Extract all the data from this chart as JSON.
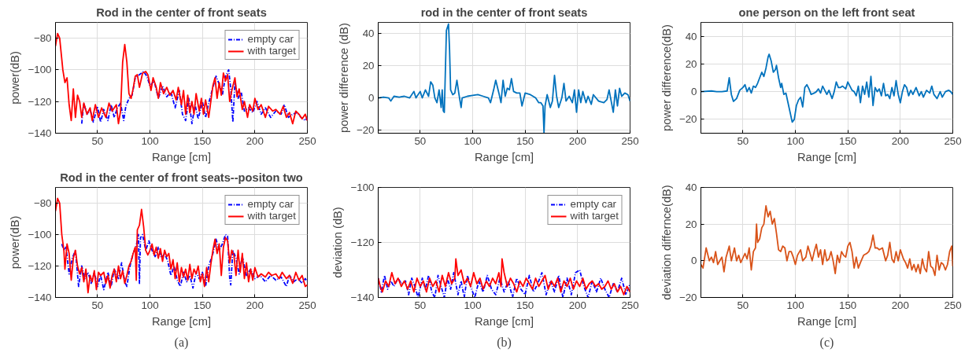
{
  "chart_data": [
    {
      "type": "line",
      "title": "Rod in the center of front seats",
      "xlabel": "Range [cm]",
      "ylabel": "power(dB)",
      "xlim": [
        10,
        250
      ],
      "xticks": [
        50,
        100,
        150,
        200,
        250
      ],
      "ylim": [
        -140,
        -70
      ],
      "yticks": [
        -140,
        -120,
        -100,
        -80
      ],
      "grid": true,
      "legend": "top right",
      "series": [
        {
          "name": "empty car",
          "color": "#0000ff",
          "line_style": "dashdot",
          "x": [
            35,
            37,
            40,
            43,
            46,
            50,
            53,
            56,
            60,
            63,
            66,
            69,
            72,
            75,
            77,
            80,
            83,
            86,
            90,
            94,
            97,
            100,
            104,
            108,
            112,
            116,
            120,
            124,
            128,
            131,
            134,
            137,
            140,
            143,
            146,
            150,
            153,
            156,
            160,
            163,
            166,
            169,
            172,
            175,
            177,
            179,
            181,
            184,
            187,
            190,
            194,
            198,
            202,
            206,
            210,
            215,
            220,
            225,
            228,
            232,
            236,
            240,
            244,
            248,
            250
          ],
          "values": [
            -134,
            -121,
            -128,
            -125,
            -133,
            -123,
            -133,
            -125,
            -132,
            -122,
            -130,
            -124,
            -121,
            -132,
            -123,
            -118,
            -116,
            -105,
            -103,
            -101,
            -104,
            -110,
            -107,
            -118,
            -110,
            -117,
            -114,
            -124,
            -113,
            -128,
            -132,
            -118,
            -134,
            -122,
            -131,
            -120,
            -130,
            -121,
            -111,
            -104,
            -109,
            -116,
            -104,
            -100,
            -112,
            -133,
            -108,
            -118,
            -114,
            -126,
            -124,
            -127,
            -120,
            -128,
            -124,
            -130,
            -126,
            -128,
            -122,
            -130,
            -128,
            -127,
            -130,
            -132,
            -130
          ]
        },
        {
          "name": "with target",
          "color": "#ff0000",
          "line_style": "solid",
          "x": [
            10,
            12,
            14,
            17,
            19,
            21,
            23,
            25,
            27,
            29,
            31,
            33,
            35,
            37,
            40,
            43,
            45,
            48,
            51,
            54,
            58,
            61,
            64,
            68,
            70,
            72,
            74,
            76,
            78,
            80,
            82,
            84,
            86,
            88,
            90,
            93,
            96,
            98,
            101,
            103,
            106,
            108,
            110,
            113,
            116,
            119,
            122,
            125,
            127,
            130,
            132,
            134,
            136,
            138,
            140,
            142,
            144,
            147,
            149,
            151,
            153,
            156,
            158,
            160,
            162,
            164,
            166,
            168,
            170,
            172,
            174,
            176,
            178,
            181,
            183,
            185,
            188,
            190,
            193,
            195,
            198,
            200,
            203,
            206,
            210,
            213,
            217,
            220,
            224,
            227,
            230,
            233,
            236,
            239,
            242,
            245,
            248,
            250
          ],
          "values": [
            -85,
            -77,
            -80,
            -100,
            -108,
            -105,
            -122,
            -132,
            -112,
            -130,
            -116,
            -120,
            -130,
            -121,
            -128,
            -124,
            -132,
            -122,
            -130,
            -124,
            -130,
            -121,
            -126,
            -122,
            -134,
            -126,
            -95,
            -84,
            -95,
            -115,
            -118,
            -112,
            -104,
            -103,
            -111,
            -102,
            -101,
            -103,
            -113,
            -105,
            -111,
            -118,
            -108,
            -115,
            -111,
            -116,
            -113,
            -119,
            -111,
            -122,
            -113,
            -128,
            -116,
            -127,
            -120,
            -128,
            -115,
            -126,
            -118,
            -128,
            -119,
            -130,
            -120,
            -110,
            -105,
            -118,
            -108,
            -116,
            -102,
            -107,
            -103,
            -120,
            -113,
            -105,
            -117,
            -112,
            -125,
            -120,
            -130,
            -122,
            -126,
            -118,
            -125,
            -122,
            -130,
            -123,
            -126,
            -125,
            -128,
            -123,
            -130,
            -127,
            -134,
            -126,
            -128,
            -131,
            -128,
            -132
          ]
        }
      ]
    },
    {
      "type": "line",
      "title": "rod in the center of front seats",
      "xlabel": "Range [cm]",
      "ylabel": "power difference (dB)",
      "xlim": [
        10,
        250
      ],
      "xticks": [
        50,
        100,
        150,
        200,
        250
      ],
      "ylim": [
        -22,
        47
      ],
      "yticks": [
        -20,
        0,
        20,
        40
      ],
      "grid": true,
      "series": [
        {
          "color": "#0072bd",
          "line_style": "solid",
          "x": [
            10,
            15,
            20,
            22,
            25,
            30,
            35,
            40,
            44,
            46,
            50,
            52,
            55,
            58,
            60,
            62,
            64,
            66,
            68,
            70,
            71,
            72,
            73,
            75,
            77,
            78,
            79,
            81,
            83,
            85,
            87,
            89,
            90,
            95,
            100,
            105,
            110,
            115,
            117,
            120,
            122,
            125,
            127,
            129,
            131,
            133,
            135,
            137,
            139,
            142,
            145,
            147,
            150,
            155,
            160,
            163,
            165,
            167,
            168,
            169,
            171,
            174,
            176,
            178,
            180,
            182,
            185,
            187,
            189,
            192,
            195,
            197,
            199,
            201,
            203,
            205,
            208,
            210,
            213,
            215,
            220,
            225,
            228,
            230,
            232,
            234,
            236,
            238,
            240,
            242,
            245,
            248,
            250
          ],
          "values": [
            0,
            0.5,
            0,
            -2,
            1,
            0.5,
            1,
            0,
            4,
            0,
            4,
            0,
            5,
            1,
            10,
            8,
            0,
            -3,
            5,
            -6,
            5,
            -8,
            -9,
            42,
            46,
            30,
            5,
            2,
            3,
            11,
            2,
            -6,
            0,
            1,
            1.5,
            2,
            1,
            0,
            -3,
            5,
            11,
            3,
            -3,
            11,
            1,
            6,
            5,
            12,
            4,
            3,
            3,
            -5,
            3,
            2,
            0,
            -3,
            -3,
            -5,
            -22,
            -5,
            2,
            -6,
            -2,
            14,
            1,
            -6,
            0,
            9,
            -2,
            1,
            -3,
            5,
            -9,
            5,
            -3,
            4,
            -3,
            1,
            -4,
            2,
            -2,
            -3,
            -1,
            5,
            -2,
            -9,
            5,
            -5,
            6,
            1,
            3,
            2,
            -2
          ]
        }
      ]
    },
    {
      "type": "line",
      "title": "one person on the left front seat",
      "xlabel": "Range [cm]",
      "ylabel": "power difference(dB)",
      "xlim": [
        10,
        250
      ],
      "xticks": [
        50,
        100,
        150,
        200,
        250
      ],
      "ylim": [
        -30,
        50
      ],
      "yticks": [
        -20,
        0,
        20,
        40
      ],
      "grid": true,
      "series": [
        {
          "color": "#0072bd",
          "line_style": "solid",
          "x": [
            10,
            20,
            25,
            30,
            35,
            37,
            39,
            41,
            44,
            47,
            50,
            52,
            54,
            56,
            58,
            60,
            62,
            64,
            66,
            68,
            70,
            72,
            74,
            75,
            77,
            79,
            81,
            82,
            84,
            86,
            87,
            89,
            91,
            93,
            95,
            97,
            99,
            101,
            103,
            105,
            107,
            109,
            111,
            113,
            115,
            118,
            120,
            122,
            124,
            126,
            128,
            130,
            132,
            135,
            137,
            139,
            141,
            143,
            145,
            148,
            150,
            152,
            154,
            156,
            158,
            160,
            162,
            164,
            166,
            168,
            170,
            172,
            174,
            176,
            178,
            180,
            182,
            184,
            186,
            188,
            190,
            192,
            194,
            196,
            198,
            200,
            202,
            204,
            206,
            208,
            210,
            212,
            215,
            218,
            220,
            222,
            225,
            228,
            230,
            232,
            235,
            238,
            240,
            243,
            246,
            248,
            250
          ],
          "values": [
            0,
            0.5,
            0,
            0,
            0.5,
            10,
            -2,
            -7,
            -5,
            1,
            3,
            5,
            0,
            3,
            -1,
            4,
            3,
            6,
            10,
            14,
            11,
            17,
            25,
            27,
            22,
            14,
            16,
            19,
            10,
            3,
            6,
            -2,
            -1,
            -8,
            -15,
            -22,
            -20,
            -10,
            -6,
            -4,
            -11,
            3,
            5,
            2,
            -2,
            -1,
            0,
            2,
            -1,
            4,
            1,
            -2,
            1,
            -5,
            0,
            7,
            3,
            3,
            4,
            2,
            7,
            4,
            1,
            0,
            -3,
            4,
            -8,
            4,
            -2,
            7,
            -4,
            11,
            -10,
            3,
            0,
            2,
            -3,
            6,
            -3,
            -2,
            -5,
            3,
            -3,
            8,
            -2,
            -8,
            0,
            5,
            3,
            -3,
            1,
            -2,
            3,
            -3,
            0,
            -4,
            1,
            -1,
            4,
            -2,
            -5,
            0,
            -4,
            0,
            1,
            0,
            -2
          ]
        }
      ]
    },
    {
      "type": "line",
      "title": "Rod in the center of front seats--positon two",
      "xlabel": "Range [cm]",
      "ylabel": "power(dB)",
      "xlim": [
        10,
        250
      ],
      "xticks": [
        50,
        100,
        150,
        200,
        250
      ],
      "ylim": [
        -140,
        -70
      ],
      "yticks": [
        -140,
        -120,
        -100,
        -80
      ],
      "grid": true,
      "legend": "top right",
      "annotations": [
        "(a)"
      ],
      "series": [
        {
          "name": "empty car",
          "color": "#0000ff",
          "line_style": "dashdot",
          "x": [
            16,
            18,
            20,
            23,
            26,
            29,
            32,
            35,
            38,
            41,
            44,
            47,
            50,
            53,
            56,
            60,
            63,
            66,
            70,
            73,
            76,
            78,
            81,
            84,
            87,
            89,
            90,
            91,
            93,
            96,
            99,
            102,
            105,
            108,
            111,
            114,
            117,
            120,
            123,
            126,
            129,
            132,
            135,
            138,
            141,
            144,
            147,
            150,
            153,
            156,
            160,
            163,
            166,
            169,
            172,
            174,
            176,
            177,
            179,
            182,
            185,
            188,
            192,
            196,
            200,
            205,
            210,
            215,
            220,
            225,
            230,
            233,
            237,
            241,
            245,
            248,
            250
          ],
          "values": [
            -106,
            -110,
            -108,
            -125,
            -115,
            -110,
            -133,
            -120,
            -128,
            -124,
            -131,
            -124,
            -133,
            -126,
            -135,
            -124,
            -133,
            -122,
            -128,
            -118,
            -130,
            -133,
            -120,
            -112,
            -107,
            -100,
            -131,
            -102,
            -100,
            -110,
            -104,
            -110,
            -114,
            -108,
            -115,
            -112,
            -117,
            -126,
            -120,
            -129,
            -133,
            -124,
            -130,
            -126,
            -134,
            -124,
            -128,
            -124,
            -133,
            -120,
            -112,
            -103,
            -110,
            -106,
            -100,
            -101,
            -128,
            -132,
            -110,
            -115,
            -125,
            -114,
            -126,
            -122,
            -128,
            -126,
            -130,
            -126,
            -129,
            -127,
            -133,
            -126,
            -130,
            -128,
            -131,
            -128,
            -130
          ]
        },
        {
          "name": "with target",
          "color": "#ff0000",
          "line_style": "solid",
          "x": [
            10,
            12,
            14,
            16,
            18,
            19,
            21,
            23,
            25,
            27,
            29,
            31,
            33,
            35,
            37,
            39,
            41,
            43,
            45,
            47,
            49,
            51,
            53,
            56,
            58,
            60,
            62,
            64,
            66,
            68,
            70,
            72,
            74,
            76,
            78,
            80,
            82,
            84,
            86,
            87,
            88,
            90,
            92,
            94,
            96,
            98,
            100,
            102,
            104,
            106,
            108,
            110,
            112,
            114,
            116,
            118,
            120,
            122,
            124,
            126,
            128,
            130,
            132,
            134,
            136,
            138,
            140,
            142,
            144,
            146,
            148,
            150,
            152,
            154,
            156,
            158,
            160,
            162,
            164,
            166,
            168,
            170,
            172,
            174,
            176,
            178,
            180,
            182,
            184,
            186,
            188,
            190,
            192,
            194,
            196,
            198,
            200,
            203,
            206,
            210,
            213,
            216,
            220,
            223,
            226,
            230,
            233,
            236,
            239,
            242,
            245,
            248,
            250
          ],
          "values": [
            -85,
            -77,
            -80,
            -100,
            -110,
            -122,
            -106,
            -112,
            -129,
            -115,
            -110,
            -120,
            -125,
            -121,
            -130,
            -122,
            -137,
            -126,
            -130,
            -123,
            -135,
            -124,
            -126,
            -124,
            -131,
            -126,
            -134,
            -126,
            -122,
            -130,
            -120,
            -128,
            -123,
            -131,
            -126,
            -120,
            -117,
            -112,
            -108,
            -129,
            -97,
            -94,
            -84,
            -95,
            -110,
            -113,
            -110,
            -106,
            -113,
            -108,
            -115,
            -109,
            -117,
            -110,
            -114,
            -112,
            -122,
            -116,
            -128,
            -118,
            -130,
            -121,
            -127,
            -122,
            -129,
            -119,
            -128,
            -122,
            -125,
            -120,
            -130,
            -125,
            -133,
            -121,
            -130,
            -119,
            -110,
            -103,
            -112,
            -106,
            -126,
            -108,
            -102,
            -104,
            -118,
            -110,
            -113,
            -126,
            -110,
            -124,
            -112,
            -128,
            -118,
            -130,
            -122,
            -129,
            -121,
            -127,
            -125,
            -127,
            -124,
            -126,
            -125,
            -128,
            -124,
            -128,
            -126,
            -131,
            -124,
            -129,
            -126,
            -133,
            -132
          ]
        }
      ]
    },
    {
      "type": "line",
      "xlabel": "Range [cm]",
      "ylabel": "deviation (dB)",
      "xlim": [
        10,
        250
      ],
      "xticks": [
        50,
        100,
        150,
        200,
        250
      ],
      "ylim": [
        -140,
        -100
      ],
      "yticks": [
        -140,
        -120,
        -100
      ],
      "grid": true,
      "legend": "top right",
      "annotations": [
        "(b)"
      ],
      "series": [
        {
          "name": "empty car",
          "color": "#0000ff",
          "line_style": "dashdot",
          "x": [
            10,
            13,
            16,
            19,
            22,
            25,
            29,
            32,
            36,
            39,
            42,
            45,
            48,
            52,
            55,
            58,
            61,
            64,
            67,
            70,
            73,
            76,
            79,
            82,
            86,
            89,
            92,
            95,
            99,
            102,
            106,
            110,
            114,
            118,
            122,
            126,
            130,
            134,
            138,
            142,
            146,
            150,
            154,
            158,
            162,
            166,
            170,
            174,
            178,
            182,
            186,
            190,
            194,
            198,
            202,
            206,
            210,
            214,
            218,
            222,
            226,
            230,
            234,
            238,
            242,
            246,
            250
          ],
          "values": [
            -133,
            -138,
            -132,
            -137,
            -134,
            -136,
            -133,
            -135,
            -134,
            -139,
            -133,
            -136,
            -140,
            -133,
            -137,
            -132,
            -138,
            -140,
            -132,
            -136,
            -140,
            -133,
            -137,
            -131,
            -139,
            -134,
            -140,
            -132,
            -137,
            -140,
            -134,
            -138,
            -132,
            -137,
            -139,
            -133,
            -138,
            -134,
            -140,
            -133,
            -137,
            -139,
            -132,
            -138,
            -135,
            -131,
            -139,
            -134,
            -138,
            -132,
            -140,
            -133,
            -139,
            -131,
            -130,
            -136,
            -140,
            -134,
            -138,
            -133,
            -137,
            -140,
            -135,
            -138,
            -133,
            -139,
            -135
          ]
        },
        {
          "name": "with target",
          "color": "#ff0000",
          "line_style": "solid",
          "x": [
            10,
            12,
            14,
            17,
            20,
            23,
            26,
            29,
            32,
            35,
            38,
            41,
            44,
            47,
            50,
            53,
            56,
            59,
            62,
            65,
            68,
            71,
            74,
            77,
            80,
            83,
            84,
            86,
            89,
            92,
            95,
            98,
            101,
            104,
            107,
            110,
            113,
            116,
            119,
            122,
            125,
            127,
            128,
            130,
            133,
            136,
            139,
            142,
            145,
            148,
            151,
            154,
            157,
            160,
            163,
            166,
            169,
            172,
            175,
            178,
            181,
            184,
            187,
            190,
            193,
            196,
            199,
            202,
            205,
            208,
            211,
            214,
            217,
            220,
            223,
            226,
            229,
            232,
            235,
            238,
            241,
            244,
            247,
            250
          ],
          "values": [
            -133,
            -136,
            -138,
            -134,
            -136,
            -131,
            -135,
            -133,
            -136,
            -134,
            -137,
            -134,
            -138,
            -133,
            -136,
            -134,
            -138,
            -133,
            -136,
            -134,
            -138,
            -132,
            -136,
            -131,
            -135,
            -133,
            -126,
            -132,
            -130,
            -135,
            -133,
            -136,
            -131,
            -135,
            -133,
            -137,
            -134,
            -136,
            -133,
            -135,
            -131,
            -136,
            -126,
            -131,
            -136,
            -133,
            -135,
            -138,
            -134,
            -136,
            -133,
            -135,
            -137,
            -133,
            -136,
            -134,
            -132,
            -137,
            -134,
            -136,
            -133,
            -138,
            -134,
            -136,
            -133,
            -137,
            -134,
            -136,
            -133,
            -137,
            -135,
            -134,
            -136,
            -135,
            -137,
            -136,
            -134,
            -137,
            -135,
            -138,
            -136,
            -139,
            -136,
            -138
          ]
        }
      ]
    },
    {
      "type": "line",
      "xlabel": "Range [cm]",
      "ylabel": "deviation differnce(dB)",
      "xlim": [
        10,
        250
      ],
      "xticks": [
        50,
        100,
        150,
        200,
        250
      ],
      "ylim": [
        -20,
        40
      ],
      "yticks": [
        -20,
        0,
        20,
        40
      ],
      "grid": true,
      "annotations": [
        "(c)"
      ],
      "series": [
        {
          "color": "#d95319",
          "line_style": "solid",
          "x": [
            10,
            12,
            15,
            18,
            20,
            22,
            24,
            26,
            30,
            32,
            34,
            37,
            39,
            42,
            44,
            46,
            48,
            52,
            54,
            56,
            58,
            60,
            62,
            63,
            64,
            66,
            68,
            70,
            72,
            74,
            76,
            78,
            80,
            82,
            84,
            86,
            88,
            90,
            92,
            94,
            96,
            98,
            100,
            102,
            105,
            107,
            110,
            112,
            114,
            116,
            118,
            120,
            122,
            124,
            126,
            128,
            130,
            132,
            134,
            136,
            138,
            140,
            142,
            144,
            146,
            148,
            150,
            152,
            154,
            156,
            158,
            160,
            162,
            165,
            168,
            170,
            172,
            174,
            176,
            178,
            180,
            183,
            186,
            188,
            190,
            192,
            194,
            196,
            198,
            200,
            203,
            205,
            207,
            209,
            211,
            213,
            215,
            217,
            219,
            221,
            223,
            225,
            227,
            229,
            231,
            233,
            235,
            237,
            239,
            241,
            243,
            245,
            247,
            249,
            250
          ],
          "values": [
            -2,
            -4,
            7,
            0,
            2,
            -1,
            5,
            -2,
            2,
            -6,
            2,
            8,
            0,
            7,
            0,
            3,
            -1,
            4,
            1,
            7,
            -5,
            5,
            7,
            20,
            10,
            12,
            18,
            20,
            30,
            24,
            27,
            20,
            23,
            15,
            6,
            5,
            8,
            7,
            0,
            5,
            5,
            2,
            -2,
            3,
            6,
            0,
            2,
            8,
            4,
            0,
            5,
            9,
            2,
            6,
            -2,
            6,
            0,
            1,
            5,
            0,
            -7,
            3,
            -1,
            5,
            3,
            2,
            8,
            10,
            5,
            -4,
            2,
            -4,
            -1,
            3,
            4,
            5,
            8,
            14,
            7,
            7,
            6,
            7,
            0,
            3,
            10,
            1,
            -1,
            5,
            0,
            6,
            1,
            -1,
            -4,
            1,
            -5,
            -2,
            -6,
            -2,
            -7,
            1,
            -4,
            -6,
            5,
            -3,
            -4,
            -8,
            3,
            -5,
            -1,
            -2,
            -5,
            -2,
            5,
            8,
            -3
          ]
        }
      ]
    }
  ]
}
